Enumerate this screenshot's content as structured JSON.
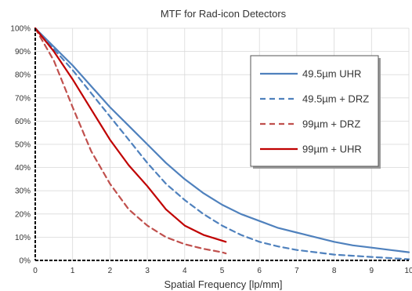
{
  "chart_data": {
    "type": "line",
    "title": "MTF for Rad-icon Detectors",
    "xlabel": "Spatial Frequency [lp/mm]",
    "ylabel": "",
    "xlim": [
      0,
      10
    ],
    "ylim": [
      0,
      100
    ],
    "x_ticks": [
      "0",
      "1",
      "2",
      "3",
      "4",
      "5",
      "6",
      "7",
      "8",
      "9",
      "10"
    ],
    "y_ticks": [
      "0%",
      "10%",
      "20%",
      "30%",
      "40%",
      "50%",
      "60%",
      "70%",
      "80%",
      "90%",
      "100%"
    ],
    "grid": true,
    "legend_position": "top-right",
    "series": [
      {
        "name": "49.5µm UHR",
        "color": "#4f81bd",
        "dash": "solid",
        "x": [
          0,
          0.5,
          1,
          1.5,
          2,
          2.5,
          3,
          3.5,
          4,
          4.5,
          5,
          5.5,
          6,
          6.5,
          7,
          7.5,
          8,
          8.5,
          9,
          9.5,
          10
        ],
        "y": [
          100,
          92,
          84,
          75,
          66,
          58,
          50,
          42,
          35,
          29,
          24,
          20,
          17,
          14,
          12,
          10,
          8,
          6.5,
          5.5,
          4.5,
          3.5
        ]
      },
      {
        "name": "49.5µm + DRZ",
        "color": "#4f81bd",
        "dash": "dashed",
        "x": [
          0,
          0.5,
          1,
          1.5,
          2,
          2.5,
          3,
          3.5,
          4,
          4.5,
          5,
          5.5,
          6,
          6.5,
          7,
          7.5,
          8,
          8.5,
          9,
          9.5,
          10
        ],
        "y": [
          100,
          91,
          82,
          72,
          62,
          52,
          42,
          33,
          26,
          20,
          15,
          11,
          8,
          6,
          4.5,
          3.5,
          2.5,
          2,
          1.5,
          1,
          0.5
        ]
      },
      {
        "name": "99µm + DRZ",
        "color": "#c0504d",
        "dash": "dashed",
        "x": [
          0,
          0.5,
          1,
          1.5,
          2,
          2.5,
          3,
          3.5,
          4,
          4.5,
          5,
          5.1
        ],
        "y": [
          100,
          86,
          66,
          47,
          33,
          22,
          15,
          10,
          7,
          5,
          3.5,
          3
        ]
      },
      {
        "name": "99µm + UHR",
        "color": "#c00000",
        "dash": "solid",
        "x": [
          0,
          0.5,
          1,
          1.5,
          2,
          2.5,
          3,
          3.5,
          4,
          4.5,
          5,
          5.1
        ],
        "y": [
          100,
          90,
          78,
          65,
          52,
          41,
          32,
          22,
          15,
          11,
          8.5,
          8
        ]
      }
    ]
  }
}
